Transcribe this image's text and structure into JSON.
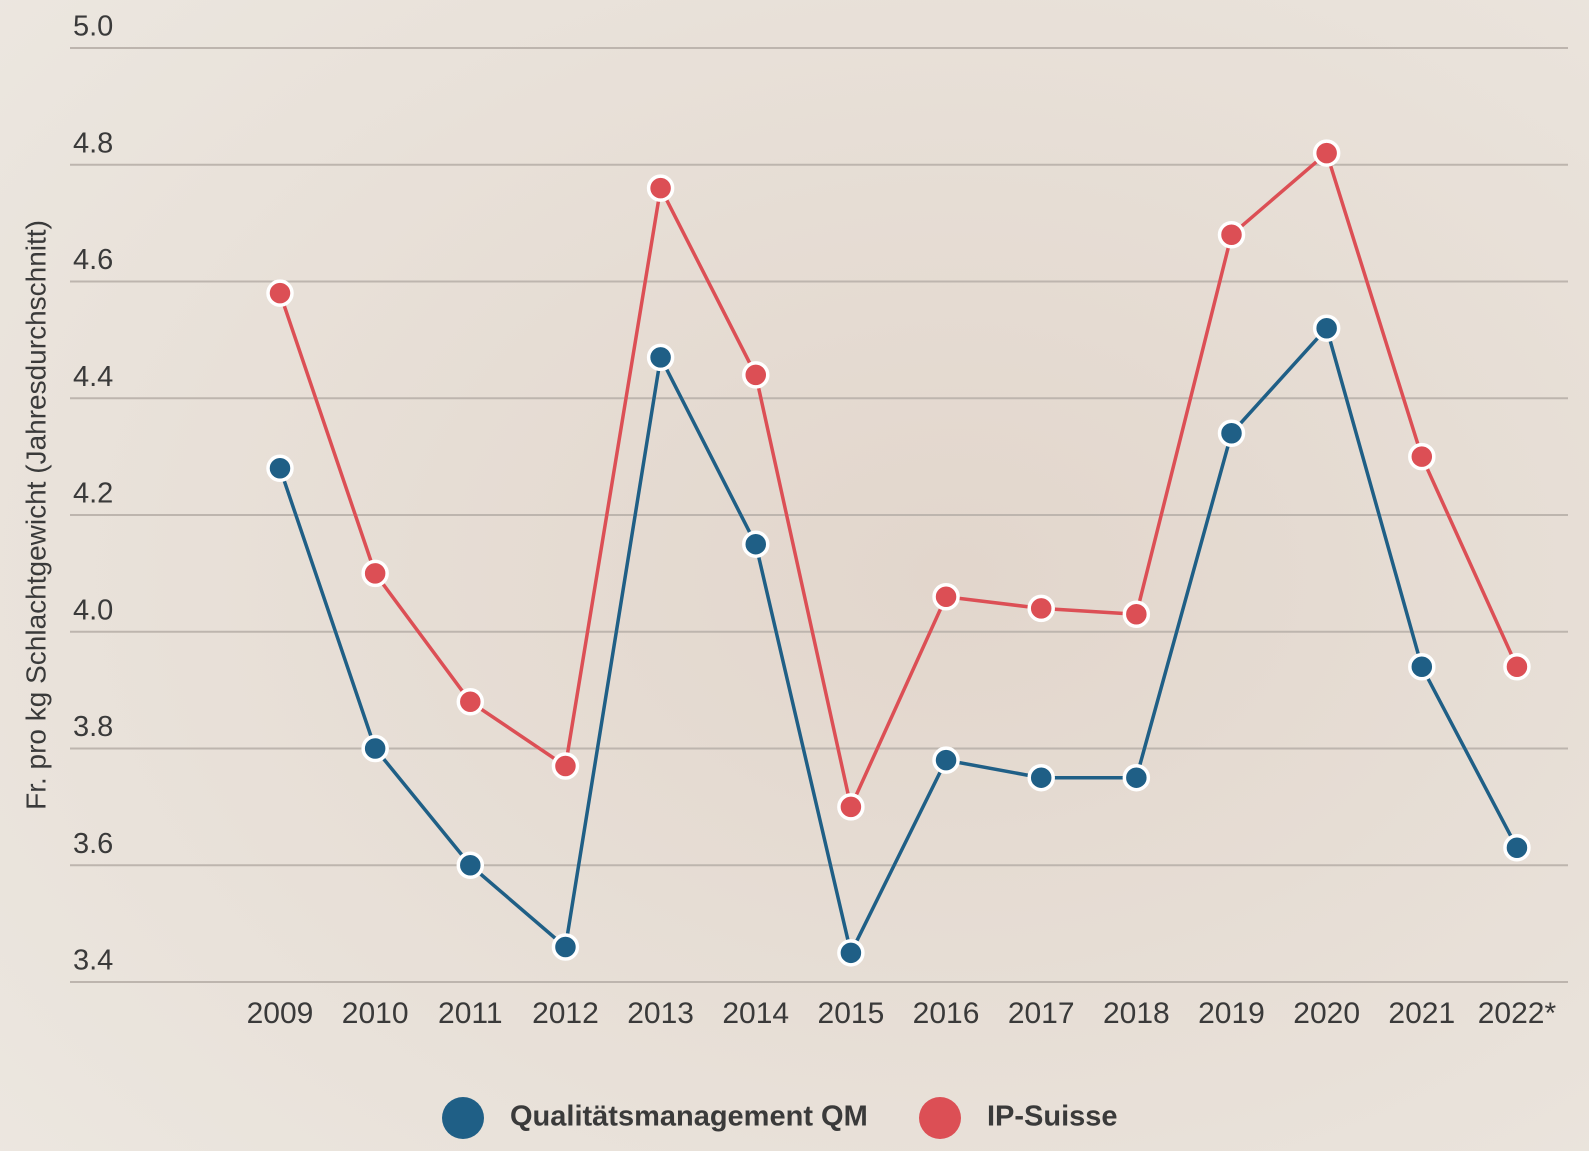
{
  "chart_data": {
    "type": "line",
    "y_label": "Fr. pro kg Schlachtgewicht (Jahresdurchschnitt)",
    "categories": [
      "2009",
      "2010",
      "2011",
      "2012",
      "2013",
      "2014",
      "2015",
      "2016",
      "2017",
      "2018",
      "2019",
      "2020",
      "2021",
      "2022*"
    ],
    "series": [
      {
        "name": "Qualitätsmanagement QM",
        "color": "#1f5f86",
        "values": [
          4.28,
          3.8,
          3.6,
          3.46,
          4.47,
          4.15,
          3.45,
          3.78,
          3.75,
          3.75,
          4.34,
          4.52,
          3.94,
          3.63
        ]
      },
      {
        "name": "IP-Suisse",
        "color": "#dc4f55",
        "values": [
          4.58,
          4.1,
          3.88,
          3.77,
          4.76,
          4.44,
          3.7,
          4.06,
          4.04,
          4.03,
          4.68,
          4.82,
          4.3,
          3.94
        ]
      }
    ],
    "ylim": [
      3.4,
      5.0
    ],
    "yticks": [
      {
        "value": 3.4,
        "label": "3.4"
      },
      3.6,
      3.8,
      {
        "value": 4.0,
        "label": "4.0"
      },
      4.2,
      4.4,
      4.6,
      4.8,
      {
        "value": 5.0,
        "label": "5.0"
      }
    ],
    "grid": true,
    "legend": "bottom"
  }
}
